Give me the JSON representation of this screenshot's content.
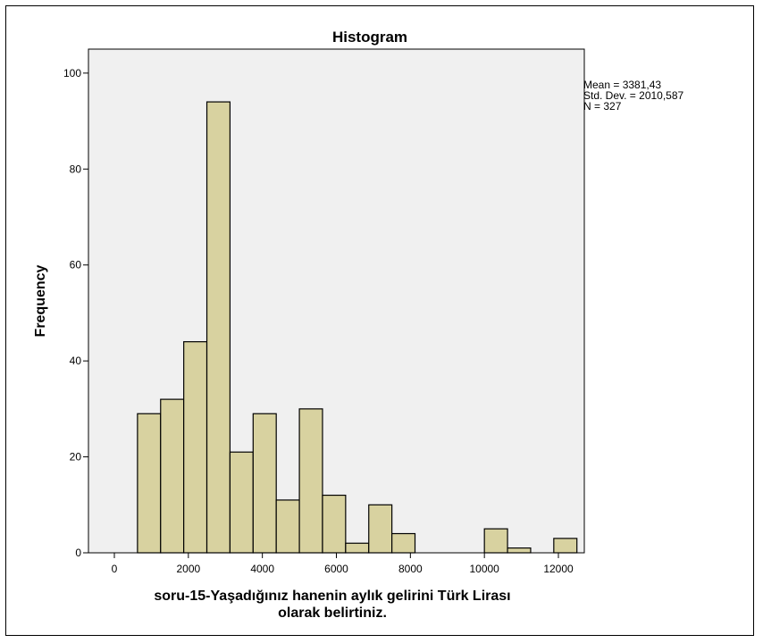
{
  "chart_data": {
    "type": "bar",
    "title": "Histogram",
    "xlabel_lines": [
      "soru-15-Yaşadığınız hanenin aylık gelirini Türk Lirası",
      "olarak belirtiniz."
    ],
    "ylabel": "Frequency",
    "xlim": [
      -700,
      12700
    ],
    "ylim": [
      0,
      105
    ],
    "x_ticks": [
      0,
      2000,
      4000,
      6000,
      8000,
      10000,
      12000
    ],
    "y_ticks": [
      0,
      20,
      40,
      60,
      80,
      100
    ],
    "bin_width": 625,
    "bins": [
      {
        "start": 625,
        "count": 29
      },
      {
        "start": 1250,
        "count": 32
      },
      {
        "start": 1875,
        "count": 44
      },
      {
        "start": 2500,
        "count": 94
      },
      {
        "start": 3125,
        "count": 21
      },
      {
        "start": 3750,
        "count": 29
      },
      {
        "start": 4375,
        "count": 11
      },
      {
        "start": 5000,
        "count": 30
      },
      {
        "start": 5625,
        "count": 12
      },
      {
        "start": 6250,
        "count": 2
      },
      {
        "start": 6875,
        "count": 10
      },
      {
        "start": 7500,
        "count": 4
      },
      {
        "start": 10000,
        "count": 5
      },
      {
        "start": 10625,
        "count": 1
      },
      {
        "start": 11875,
        "count": 3
      }
    ],
    "stats": [
      "Mean = 3381,43",
      "Std. Dev. = 2010,587",
      "N = 327"
    ],
    "colors": {
      "bar": "#d8d2a0",
      "plot_bg": "#f0f0f0",
      "outline": "#000000"
    }
  }
}
